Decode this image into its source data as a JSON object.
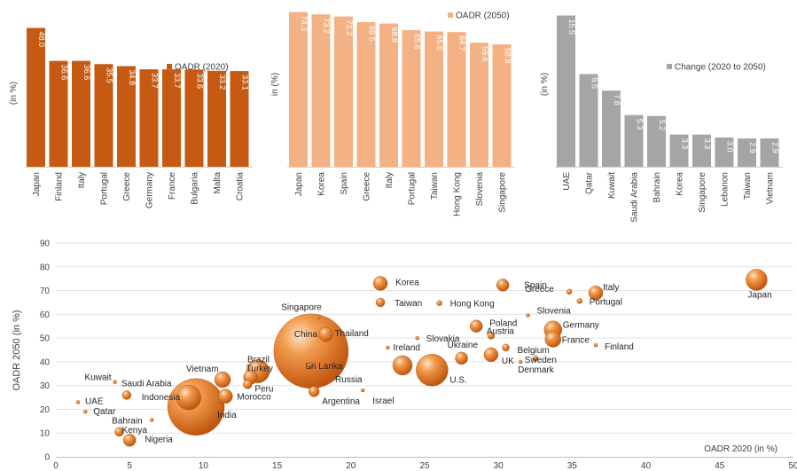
{
  "chart_data": [
    {
      "type": "bar",
      "ylabel": "(in %)",
      "legend": "OADR (2020)",
      "legend_position": "right",
      "color": "#c65a12",
      "ylim": [
        0,
        50
      ],
      "categories": [
        "Japan",
        "Finland",
        "Italy",
        "Portugal",
        "Greece",
        "Germany",
        "France",
        "Bulgaria",
        "Malta",
        "Croatia"
      ],
      "values": [
        48.0,
        36.6,
        36.6,
        35.5,
        34.8,
        33.7,
        33.7,
        33.6,
        33.2,
        33.1
      ],
      "value_labels": [
        "48.0",
        "36.6",
        "36.6",
        "35.5",
        "34.8",
        "33.7",
        "33.7",
        "33.6",
        "33.2",
        "33.1"
      ]
    },
    {
      "type": "bar",
      "ylabel": "in  (%)",
      "legend": "OADR (2050)",
      "legend_position": "top-right",
      "color": "#f4b184",
      "ylim": [
        0,
        75
      ],
      "categories": [
        "Japan",
        "Korea",
        "Spain",
        "Greece",
        "Italy",
        "Portugal",
        "Taiwan",
        "Hong Kong",
        "Slovenia",
        "Singapore"
      ],
      "values": [
        74.3,
        73.2,
        72.2,
        69.5,
        68.8,
        65.6,
        65.0,
        64.7,
        59.6,
        58.8
      ],
      "value_labels": [
        "74.3",
        "73.2",
        "72.2",
        "69.5",
        "68.8",
        "65.6",
        "65.0",
        "64.7",
        "59.6",
        "58.8"
      ]
    },
    {
      "type": "bar",
      "ylabel": "(in %)",
      "legend": "Change (2020 to 2050)",
      "legend_position": "right",
      "color": "#a5a5a5",
      "ylim": [
        0,
        16
      ],
      "categories": [
        "UAE",
        "Qatar",
        "Kuwait",
        "Saudi Arabia",
        "Bahrain",
        "Korea",
        "Singapore",
        "Lebanon",
        "Taiwan",
        "Vietnam"
      ],
      "values": [
        15.5,
        9.5,
        7.8,
        5.3,
        5.2,
        3.3,
        3.3,
        3.0,
        2.9,
        2.9
      ],
      "value_labels": [
        "15.5",
        "9.5",
        "7.8",
        "5.3",
        "5.2",
        "3.3",
        "3.3",
        "3.0",
        "2.9",
        "2.9"
      ]
    },
    {
      "type": "scatter",
      "subtype": "bubble",
      "xlabel": "OADR 2020  (in %)",
      "ylabel": "OADR  2050  (in %)",
      "xlim": [
        0,
        50
      ],
      "ylim": [
        0,
        90
      ],
      "x_ticks": [
        "0",
        "5",
        "10",
        "15",
        "20",
        "25",
        "30",
        "35",
        "40",
        "45",
        "50"
      ],
      "y_ticks": [
        "0",
        "10",
        "20",
        "30",
        "40",
        "50",
        "60",
        "70",
        "80",
        "90"
      ],
      "grid": "horizontal",
      "bubble_color": "#e07b2e",
      "points": [
        {
          "label": "Japan",
          "x": 47.5,
          "y": 74.5,
          "size": 12
        },
        {
          "label": "Korea",
          "x": 22.0,
          "y": 73.0,
          "size": 8
        },
        {
          "label": "Spain",
          "x": 30.3,
          "y": 72.3,
          "size": 7
        },
        {
          "label": "Italy",
          "x": 36.6,
          "y": 69.0,
          "size": 8
        },
        {
          "label": "Greece",
          "x": 34.8,
          "y": 69.5,
          "size": 3
        },
        {
          "label": "Portugal",
          "x": 35.5,
          "y": 65.6,
          "size": 3
        },
        {
          "label": "Taiwan",
          "x": 22.0,
          "y": 65.0,
          "size": 5
        },
        {
          "label": "Hong Kong",
          "x": 26.0,
          "y": 64.7,
          "size": 3
        },
        {
          "label": "Singapore",
          "x": 17.8,
          "y": 58.8,
          "size": 2
        },
        {
          "label": "Slovenia",
          "x": 32.0,
          "y": 59.6,
          "size": 2
        },
        {
          "label": "Poland",
          "x": 28.5,
          "y": 55.0,
          "size": 7
        },
        {
          "label": "Austria",
          "x": 29.5,
          "y": 51.0,
          "size": 4
        },
        {
          "label": "Germany",
          "x": 33.7,
          "y": 53.5,
          "size": 10
        },
        {
          "label": "France",
          "x": 33.7,
          "y": 49.5,
          "size": 9
        },
        {
          "label": "Finland",
          "x": 36.6,
          "y": 47.0,
          "size": 2
        },
        {
          "label": "Slovakia",
          "x": 24.5,
          "y": 50.0,
          "size": 2
        },
        {
          "label": "Thailand",
          "x": 18.3,
          "y": 51.5,
          "size": 8
        },
        {
          "label": "China",
          "x": 17.3,
          "y": 44.5,
          "size": 42
        },
        {
          "label": "Ireland",
          "x": 22.5,
          "y": 46.0,
          "size": 2
        },
        {
          "label": "Belgium",
          "x": 30.5,
          "y": 46.0,
          "size": 4
        },
        {
          "label": "UK",
          "x": 29.5,
          "y": 43.0,
          "size": 8
        },
        {
          "label": "Sweden",
          "x": 32.5,
          "y": 41.5,
          "size": 3
        },
        {
          "label": "Denmark",
          "x": 31.5,
          "y": 40.0,
          "size": 2
        },
        {
          "label": "Ukraine",
          "x": 27.5,
          "y": 41.5,
          "size": 7
        },
        {
          "label": "U.S.",
          "x": 25.5,
          "y": 36.5,
          "size": 18
        },
        {
          "label": "Russia",
          "x": 23.5,
          "y": 38.5,
          "size": 11
        },
        {
          "label": "Sri Lanka",
          "x": 17.2,
          "y": 38.5,
          "size": 4
        },
        {
          "label": "Brazil",
          "x": 13.7,
          "y": 36.0,
          "size": 13
        },
        {
          "label": "Turkey",
          "x": 13.2,
          "y": 33.5,
          "size": 8
        },
        {
          "label": "Peru",
          "x": 13.0,
          "y": 30.5,
          "size": 5
        },
        {
          "label": "Vietnam",
          "x": 11.3,
          "y": 32.5,
          "size": 9
        },
        {
          "label": "Morocco",
          "x": 11.5,
          "y": 25.5,
          "size": 8
        },
        {
          "label": "Israel",
          "x": 20.8,
          "y": 28.0,
          "size": 2
        },
        {
          "label": "Argentina",
          "x": 17.5,
          "y": 27.5,
          "size": 6
        },
        {
          "label": "India",
          "x": 9.5,
          "y": 21.0,
          "size": 32
        },
        {
          "label": "Indonesia",
          "x": 9.0,
          "y": 25.0,
          "size": 14
        },
        {
          "label": "Saudi Arabia",
          "x": 4.8,
          "y": 26.0,
          "size": 5
        },
        {
          "label": "Kuwait",
          "x": 4.0,
          "y": 31.5,
          "size": 2
        },
        {
          "label": "UAE",
          "x": 1.5,
          "y": 23.0,
          "size": 2
        },
        {
          "label": "Qatar",
          "x": 2.0,
          "y": 19.0,
          "size": 2
        },
        {
          "label": "Bahrain",
          "x": 6.5,
          "y": 15.5,
          "size": 2
        },
        {
          "label": "Kenya",
          "x": 4.3,
          "y": 10.5,
          "size": 5
        },
        {
          "label": "Nigeria",
          "x": 5.0,
          "y": 7.0,
          "size": 7
        }
      ]
    }
  ]
}
